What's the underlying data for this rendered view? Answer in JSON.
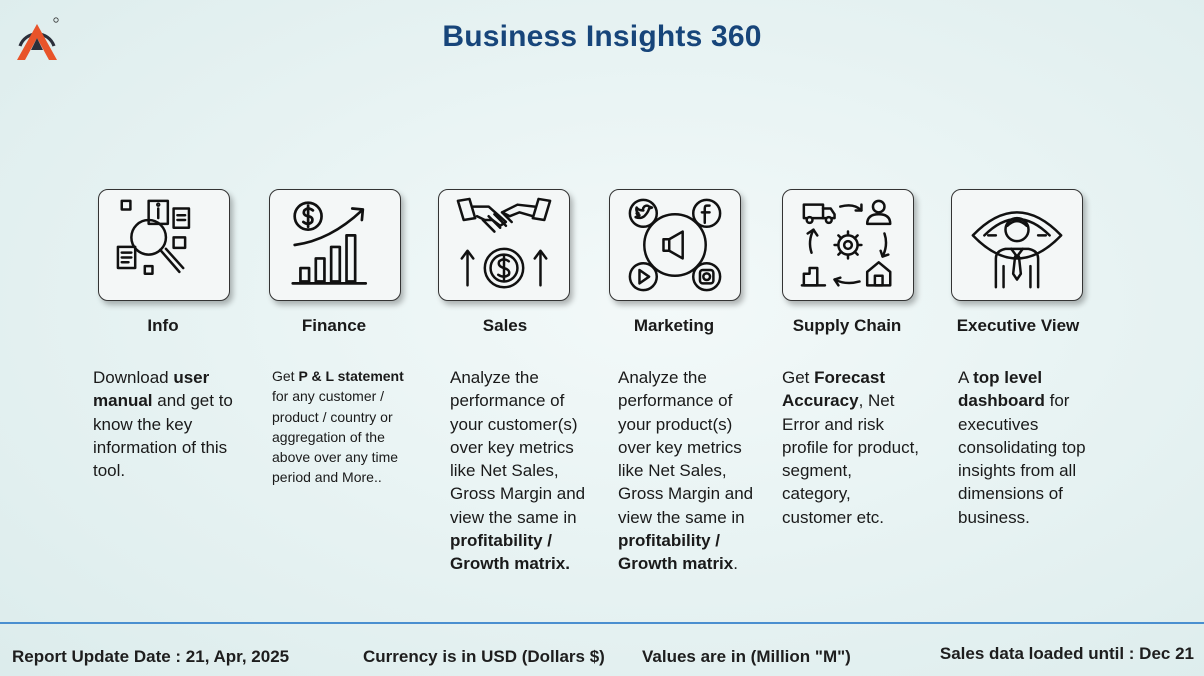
{
  "header": {
    "title": "Business Insights 360",
    "logo_icon": "atliq-logo-icon",
    "brand_colors": {
      "title": "#17457a",
      "logo_orange": "#e8542a",
      "logo_dark": "#2b2f3a"
    }
  },
  "cards": [
    {
      "id": "info",
      "label": "Info",
      "icon": "info-search-icon",
      "description": [
        {
          "t": "Download "
        },
        {
          "t": "user manual",
          "b": true
        },
        {
          "t": " and get to know the key information of this tool."
        }
      ]
    },
    {
      "id": "finance",
      "label": "Finance",
      "icon": "finance-growth-icon",
      "description": [
        {
          "t": "Get  "
        },
        {
          "t": "P & L statement",
          "b": true
        },
        {
          "t": " for any customer / product / country or aggregation of the above over any time period and More.."
        }
      ]
    },
    {
      "id": "sales",
      "label": "Sales",
      "icon": "handshake-dollar-icon",
      "description": [
        {
          "t": "Analyze the performance of your customer(s) over key metrics like Net Sales, Gross Margin and view the same in "
        },
        {
          "t": "profitability / Growth matrix.",
          "b": true
        }
      ]
    },
    {
      "id": "marketing",
      "label": "Marketing",
      "icon": "social-media-icon",
      "description": [
        {
          "t": "Analyze the performance of your product(s) over key metrics like Net Sales, Gross Margin and view the same in "
        },
        {
          "t": "profitability / Growth matrix",
          "b": true
        },
        {
          "t": "."
        }
      ]
    },
    {
      "id": "supply_chain",
      "label": "Supply Chain",
      "icon": "supply-chain-cycle-icon",
      "description": [
        {
          "t": "Get "
        },
        {
          "t": "Forecast Accuracy",
          "b": true
        },
        {
          "t": ", Net Error and risk profile for product, segment, category, customer etc."
        }
      ]
    },
    {
      "id": "executive_view",
      "label": "Executive View",
      "icon": "executive-vision-icon",
      "description": [
        {
          "t": "A "
        },
        {
          "t": "top level dashboard",
          "b": true
        },
        {
          "t": " for executives consolidating top insights from all dimensions of business."
        }
      ]
    }
  ],
  "footer": {
    "report_update": "Report Update Date : 21, Apr, 2025",
    "currency": "Currency is in USD (Dollars $)",
    "values_unit": "Values are in (Million \"M\")",
    "sales_loaded": "Sales data loaded until : Dec 21"
  }
}
